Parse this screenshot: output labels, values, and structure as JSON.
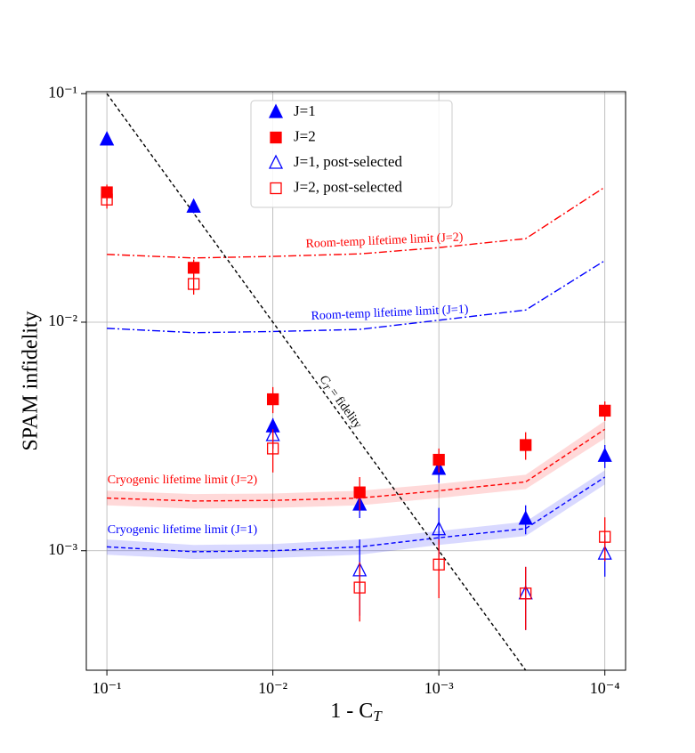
{
  "chart_data": {
    "type": "scatter",
    "y_label": "SPAM infidelity",
    "x_label": "1 - C",
    "x_label_sub": "T",
    "log_x": true,
    "log_y": true,
    "x_reversed": true,
    "grid": true,
    "legend": "upper center",
    "xlim": [
      0.133,
      7.5e-05
    ],
    "ylim": [
      0.0003,
      0.102
    ],
    "xticks": [
      {
        "value": 0.1,
        "label": "10⁻¹"
      },
      {
        "value": 0.01,
        "label": "10⁻²"
      },
      {
        "value": 0.001,
        "label": "10⁻³"
      },
      {
        "value": 0.0001,
        "label": "10⁻⁴"
      }
    ],
    "yticks": [
      {
        "value": 0.1,
        "label": "10⁻¹"
      },
      {
        "value": 0.01,
        "label": "10⁻²"
      },
      {
        "value": 0.001,
        "label": "10⁻³"
      }
    ],
    "x": [
      0.1,
      0.03,
      0.01,
      0.003,
      0.001,
      0.0003,
      0.0001
    ],
    "series": [
      {
        "name": "J=1",
        "color": "#0000ff",
        "marker": "triangle",
        "filled": true,
        "values": [
          0.063,
          0.032,
          0.0035,
          0.00159,
          0.00228,
          0.00138,
          0.0026
        ],
        "errors": [
          0.003,
          0.002,
          0.0003,
          0.0002,
          0.0003,
          0.0002,
          0.0003
        ]
      },
      {
        "name": "J=2",
        "color": "#ff0000",
        "marker": "square",
        "filled": true,
        "values": [
          0.037,
          0.0173,
          0.0046,
          0.0018,
          0.0025,
          0.0029,
          0.0041
        ],
        "errors": [
          0.003,
          0.0015,
          0.0006,
          0.0003,
          0.0003,
          0.0004,
          0.0004
        ]
      },
      {
        "name": "J=1, post-selected",
        "color": "#0000ff",
        "marker": "triangle",
        "filled": false,
        "values": [
          0.063,
          0.032,
          0.0032,
          0.00082,
          0.00124,
          0.00065,
          0.00097
        ],
        "errors": [
          0.003,
          0.002,
          0.0004,
          0.0003,
          0.0003,
          0.0002,
          0.0002
        ]
      },
      {
        "name": "J=2, post-selected",
        "color": "#ff0000",
        "marker": "square",
        "filled": false,
        "values": [
          0.0344,
          0.0147,
          0.0028,
          0.00069,
          0.00087,
          0.00065,
          0.00115
        ],
        "errors": [
          0.003,
          0.0015,
          0.0006,
          0.0002,
          0.00025,
          0.0002,
          0.00025
        ]
      }
    ],
    "lines": [
      {
        "label": "Room-temp lifetime limit (J=2)",
        "color": "#ff0000",
        "style": "dashdot",
        "values": [
          0.0198,
          0.0191,
          0.0194,
          0.0199,
          0.0212,
          0.0232,
          0.039
        ]
      },
      {
        "label": "Room-temp lifetime limit (J=1)",
        "color": "#0000ff",
        "style": "dashdot",
        "values": [
          0.0094,
          0.009,
          0.0091,
          0.0093,
          0.0102,
          0.0113,
          0.0186
        ]
      },
      {
        "label": "Cryogenic lifetime limit (J=2)",
        "color": "#ff0000",
        "style": "dashed",
        "values": [
          0.0017,
          0.00165,
          0.00166,
          0.0017,
          0.00183,
          0.002,
          0.0034
        ],
        "lower": [
          0.00158,
          0.00153,
          0.00154,
          0.00158,
          0.0017,
          0.00186,
          0.0031
        ],
        "upper": [
          0.00183,
          0.00177,
          0.00178,
          0.00183,
          0.00196,
          0.00215,
          0.0037
        ]
      },
      {
        "label": "Cryogenic lifetime limit (J=1)",
        "color": "#0000ff",
        "style": "dashed",
        "values": [
          0.00104,
          0.00099,
          0.001,
          0.00104,
          0.00114,
          0.00125,
          0.0021
        ],
        "lower": [
          0.00096,
          0.00092,
          0.00093,
          0.00096,
          0.00106,
          0.00116,
          0.00195
        ],
        "upper": [
          0.00112,
          0.00106,
          0.00107,
          0.00112,
          0.00122,
          0.00134,
          0.00225
        ]
      }
    ],
    "fidelity_line": {
      "label": [
        "C",
        "T",
        " = fidelity"
      ],
      "color": "#000000",
      "x": [
        0.1,
        0.0003
      ],
      "values": [
        0.1,
        0.0003
      ]
    }
  }
}
